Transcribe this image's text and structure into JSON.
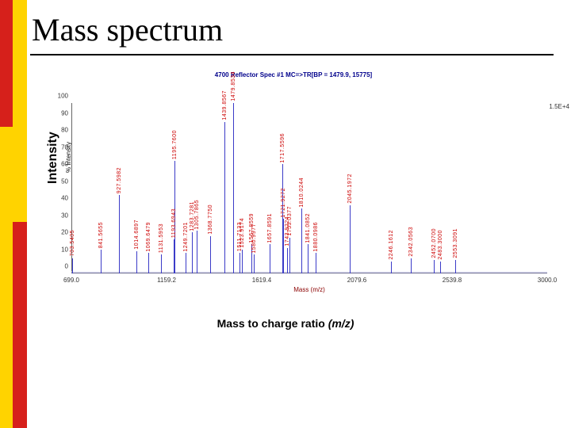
{
  "slide": {
    "title": "Mass spectrum",
    "y_axis_label": "Intensity",
    "x_axis_label_prefix": "Mass to charge ratio ",
    "x_axis_label_mz": "(m/z)"
  },
  "sidebar": {
    "red_color": "#d6201b",
    "yellow_color": "#ffd300",
    "red_top_h": 160,
    "yellow_top_h": 280
  },
  "chart": {
    "type": "mass-spectrum",
    "header": "4700 Reflector Spec #1 MC=>TR[BP = 1479.9, 15775]",
    "topright": "1.5E+4",
    "x_native_caption": "Mass (m/z)",
    "y_native_caption": "% Intensity",
    "xlim": [
      699,
      3000
    ],
    "ylim": [
      0,
      100
    ],
    "x_ticks": [
      699.0,
      1159.2,
      1619.4,
      2079.6,
      2539.8,
      3000.0
    ],
    "y_ticks": [
      0,
      10,
      20,
      30,
      40,
      50,
      60,
      70,
      80,
      90,
      100
    ],
    "peak_color": "#3b3bc8",
    "label_color": "#cc0000",
    "background_color": "#ffffff",
    "axis_color": "#666666",
    "peaks": [
      {
        "mz": 703.5405,
        "intensity": 9
      },
      {
        "mz": 841.5655,
        "intensity": 14
      },
      {
        "mz": 927.5982,
        "intensity": 46
      },
      {
        "mz": 1014.6897,
        "intensity": 13
      },
      {
        "mz": 1069.6479,
        "intensity": 12
      },
      {
        "mz": 1131.5953,
        "intensity": 11
      },
      {
        "mz": 1195.76,
        "intensity": 66
      },
      {
        "mz": 1193.6943,
        "intensity": 20
      },
      {
        "mz": 1249.7201,
        "intensity": 12
      },
      {
        "mz": 1283.7281,
        "intensity": 24
      },
      {
        "mz": 1305.7865,
        "intensity": 25
      },
      {
        "mz": 1368.775,
        "intensity": 22
      },
      {
        "mz": 1439.8567,
        "intensity": 89
      },
      {
        "mz": 1479.8534,
        "intensity": 100
      },
      {
        "mz": 1511.7133,
        "intensity": 12
      },
      {
        "mz": 1523.9174,
        "intensity": 14
      },
      {
        "mz": 1567.8559,
        "intensity": 17
      },
      {
        "mz": 1580.9977,
        "intensity": 11
      },
      {
        "mz": 1657.8591,
        "intensity": 17
      },
      {
        "mz": 1717.5596,
        "intensity": 64
      },
      {
        "mz": 1721.9272,
        "intensity": 32
      },
      {
        "mz": 1743.9224,
        "intensity": 15
      },
      {
        "mz": 1753.0377,
        "intensity": 21
      },
      {
        "mz": 1810.0244,
        "intensity": 38
      },
      {
        "mz": 1841.0852,
        "intensity": 17
      },
      {
        "mz": 1880.0986,
        "intensity": 12
      },
      {
        "mz": 2045.1972,
        "intensity": 40
      },
      {
        "mz": 2246.1612,
        "intensity": 7
      },
      {
        "mz": 2342.0563,
        "intensity": 9
      },
      {
        "mz": 2452.07,
        "intensity": 8
      },
      {
        "mz": 2483.3,
        "intensity": 7
      },
      {
        "mz": 2553.3091,
        "intensity": 8
      }
    ]
  }
}
